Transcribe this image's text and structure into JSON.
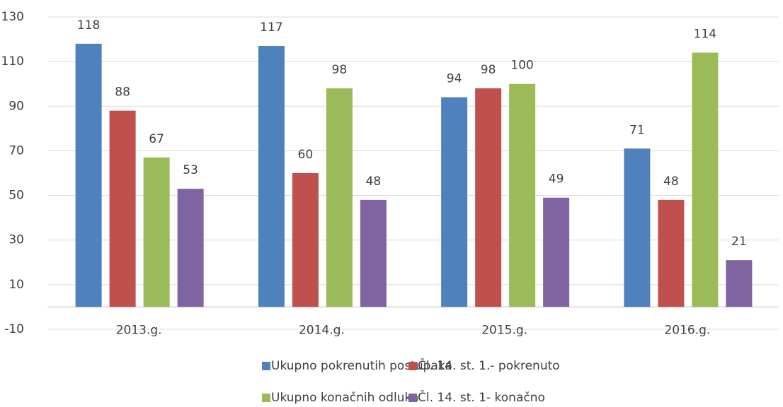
{
  "chart_data": {
    "type": "bar",
    "categories": [
      "2013.g.",
      "2014.g.",
      "2015.g.",
      "2016.g."
    ],
    "series": [
      {
        "name": "Ukupno pokrenutih postupaka",
        "color": "#4f81bd",
        "values": [
          118,
          117,
          94,
          71
        ]
      },
      {
        "name": "Čl. 14. st. 1.- pokrenuto",
        "color": "#c0504d",
        "values": [
          88,
          60,
          98,
          48
        ]
      },
      {
        "name": "Ukupno konačnih odluka",
        "color": "#9bbb59",
        "values": [
          67,
          98,
          100,
          114
        ]
      },
      {
        "name": "Čl. 14. st. 1- konačno",
        "color": "#8064a2",
        "values": [
          53,
          48,
          49,
          21
        ]
      }
    ],
    "ylim": [
      -10,
      130
    ],
    "yticks": [
      -10,
      10,
      30,
      50,
      70,
      90,
      110,
      130
    ],
    "grid": true,
    "legend": "bottom"
  }
}
